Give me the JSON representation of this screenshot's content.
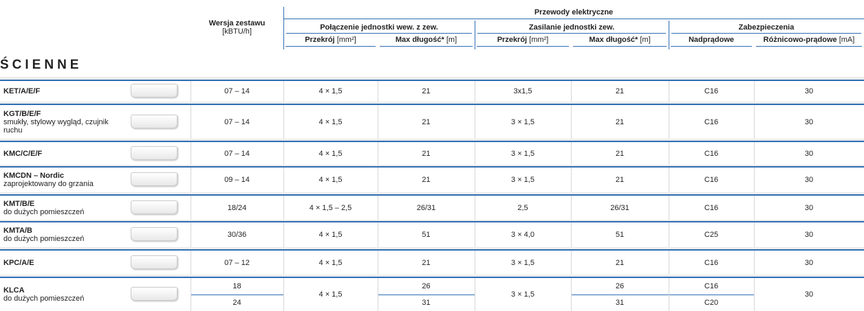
{
  "header": {
    "version_title": "Wersja zestawu",
    "version_unit": "[kBTU/h]",
    "group_title": "Przewody elektryczne",
    "groups": [
      "Połączenie jednostki wew. z zew.",
      "Zasilanie jednostki zew.",
      "Zabezpieczenia"
    ],
    "subheaders": [
      {
        "bold": "Przekrój",
        "unit": "[mm²]"
      },
      {
        "bold": "Max długość*",
        "unit": "[m]"
      },
      {
        "bold": "Przekrój",
        "unit": "[mm²]"
      },
      {
        "bold": "Max długość*",
        "unit": "[m]"
      },
      {
        "bold": "Nadprądowe",
        "unit": ""
      },
      {
        "bold": "Różnicowo-prądowe",
        "unit": "[mA]"
      }
    ]
  },
  "section_title": "ŚCIENNE",
  "rows": [
    {
      "name": "KET/A/E/F",
      "description": "",
      "version": "07 – 14",
      "cross1": "4 × 1,5",
      "max1": "21",
      "cross2": "3x1,5",
      "max2": "21",
      "overcurrent": "C16",
      "rcd": "30"
    },
    {
      "name": "KGT/B/E/F",
      "description": "smukły, stylowy wygląd, czujnik ruchu",
      "version": "07 – 14",
      "cross1": "4 × 1,5",
      "max1": "21",
      "cross2": "3 × 1,5",
      "max2": "21",
      "overcurrent": "C16",
      "rcd": "30"
    },
    {
      "name": "KMC/C/E/F",
      "description": "",
      "version": "07 – 14",
      "cross1": "4 × 1,5",
      "max1": "21",
      "cross2": "3 × 1,5",
      "max2": "21",
      "overcurrent": "C16",
      "rcd": "30"
    },
    {
      "name": "KMCDN – Nordic",
      "description": "zaprojektowany do grzania",
      "version": "09 – 14",
      "cross1": "4 × 1,5",
      "max1": "21",
      "cross2": "3 × 1,5",
      "max2": "21",
      "overcurrent": "C16",
      "rcd": "30"
    },
    {
      "name": "KMT/B/E",
      "description": "do dużych pomieszczeń",
      "version": "18/24",
      "cross1": "4 × 1,5 – 2,5",
      "max1": "26/31",
      "cross2": "2,5",
      "max2": "26/31",
      "overcurrent": "C16",
      "rcd": "30"
    },
    {
      "name": "KMTA/B",
      "description": "do dużych pomieszczeń",
      "version": "30/36",
      "cross1": "4 × 1,5",
      "max1": "51",
      "cross2": "3 × 4,0",
      "max2": "51",
      "overcurrent": "C25",
      "rcd": "30"
    },
    {
      "name": "KPC/A/E",
      "description": "",
      "version": "07 – 12",
      "cross1": "4 × 1,5",
      "max1": "21",
      "cross2": "3 × 1,5",
      "max2": "21",
      "overcurrent": "C16",
      "rcd": "30"
    },
    {
      "name": "KLCA",
      "description": "do dużych pomieszczeń",
      "version": [
        "18",
        "24"
      ],
      "cross1": "4 × 1,5",
      "max1": [
        "26",
        "31"
      ],
      "cross2": "3 × 1,5",
      "max2": [
        "26",
        "31"
      ],
      "overcurrent": [
        "C16",
        "C20"
      ],
      "rcd": "30"
    }
  ]
}
